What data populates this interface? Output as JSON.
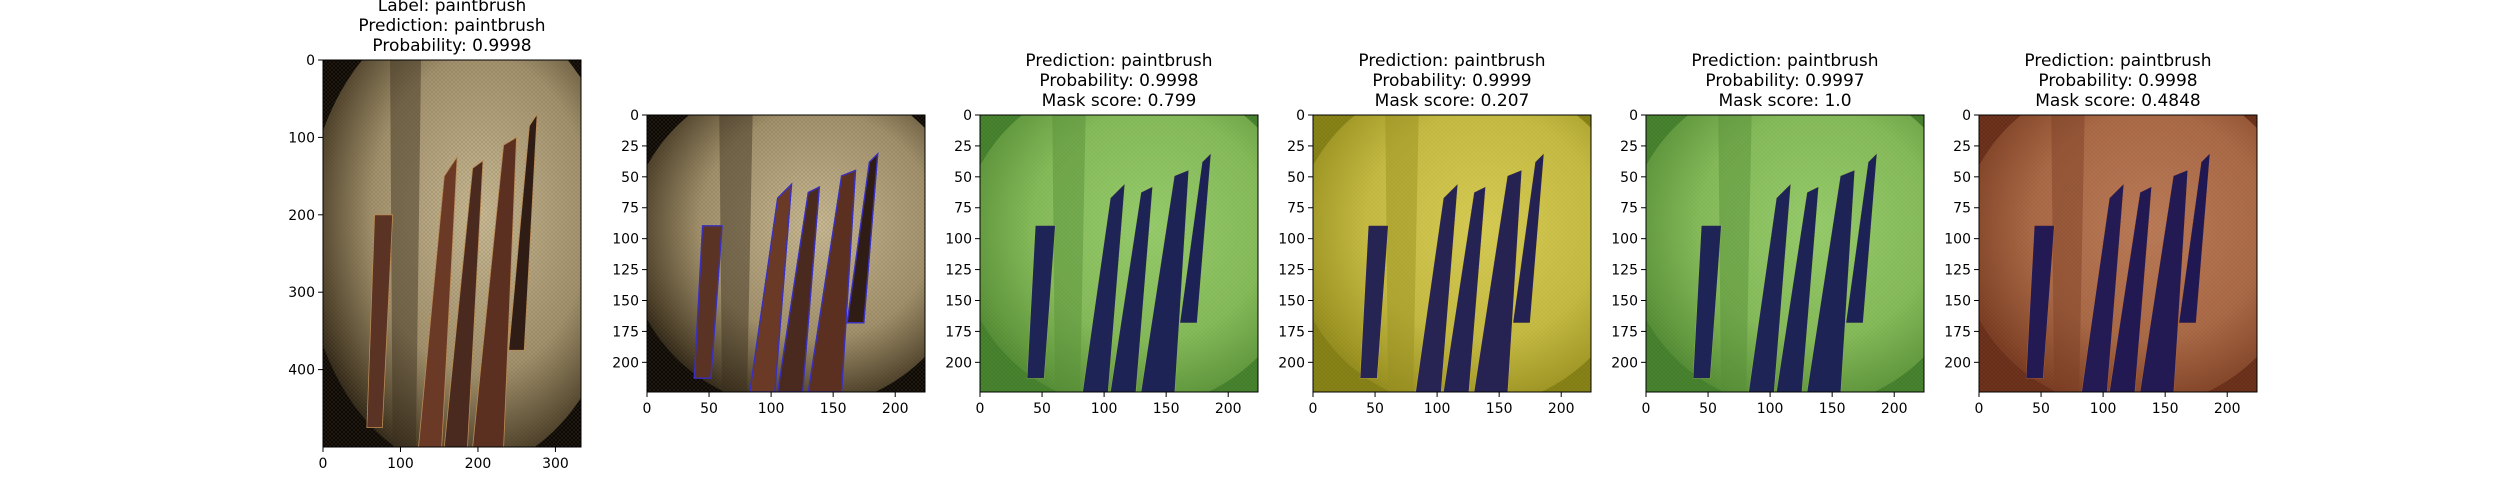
{
  "chart_data": [
    {
      "type": "image",
      "kind": "original",
      "title_lines": [
        "Label: paintbrush",
        "Prediction: paintbrush",
        "Probability: 0.9998"
      ],
      "x_ticks": [
        0,
        100,
        200,
        300
      ],
      "y_ticks": [
        0,
        100,
        200,
        300,
        400
      ],
      "xlim": [
        0,
        333
      ],
      "ylim": [
        500,
        0
      ]
    },
    {
      "type": "image",
      "kind": "contour",
      "title_lines": [],
      "x_ticks": [
        0,
        50,
        100,
        150,
        200
      ],
      "y_ticks": [
        0,
        25,
        50,
        75,
        100,
        125,
        150,
        175,
        200
      ],
      "xlim": [
        0,
        224
      ],
      "ylim": [
        224,
        0
      ]
    },
    {
      "type": "image",
      "kind": "mask",
      "overlay_color": "#6fdc4c",
      "title_lines": [
        "Prediction: paintbrush",
        "Probability: 0.9998",
        "Mask score: 0.799"
      ],
      "x_ticks": [
        0,
        50,
        100,
        150,
        200
      ],
      "y_ticks": [
        0,
        25,
        50,
        75,
        100,
        125,
        150,
        175,
        200
      ],
      "xlim": [
        0,
        224
      ],
      "ylim": [
        224,
        0
      ]
    },
    {
      "type": "image",
      "kind": "mask",
      "overlay_color": "#e2dc22",
      "title_lines": [
        "Prediction: paintbrush",
        "Probability: 0.9999",
        "Mask score: 0.207"
      ],
      "x_ticks": [
        0,
        50,
        100,
        150,
        200
      ],
      "y_ticks": [
        0,
        25,
        50,
        75,
        100,
        125,
        150,
        175,
        200
      ],
      "xlim": [
        0,
        224
      ],
      "ylim": [
        224,
        0
      ]
    },
    {
      "type": "image",
      "kind": "mask",
      "overlay_color": "#6fdc4c",
      "title_lines": [
        "Prediction: paintbrush",
        "Probability: 0.9997",
        "Mask score: 1.0"
      ],
      "x_ticks": [
        0,
        50,
        100,
        150,
        200
      ],
      "y_ticks": [
        0,
        25,
        50,
        75,
        100,
        125,
        150,
        175,
        200
      ],
      "xlim": [
        0,
        224
      ],
      "ylim": [
        224,
        0
      ]
    },
    {
      "type": "image",
      "kind": "mask",
      "overlay_color": "#b04a2a",
      "title_lines": [
        "Prediction: paintbrush",
        "Probability: 0.9998",
        "Mask score: 0.4848"
      ],
      "x_ticks": [
        0,
        50,
        100,
        150,
        200
      ],
      "y_ticks": [
        0,
        25,
        50,
        75,
        100,
        125,
        150,
        175,
        200
      ],
      "xlim": [
        0,
        224
      ],
      "ylim": [
        224,
        0
      ]
    }
  ]
}
